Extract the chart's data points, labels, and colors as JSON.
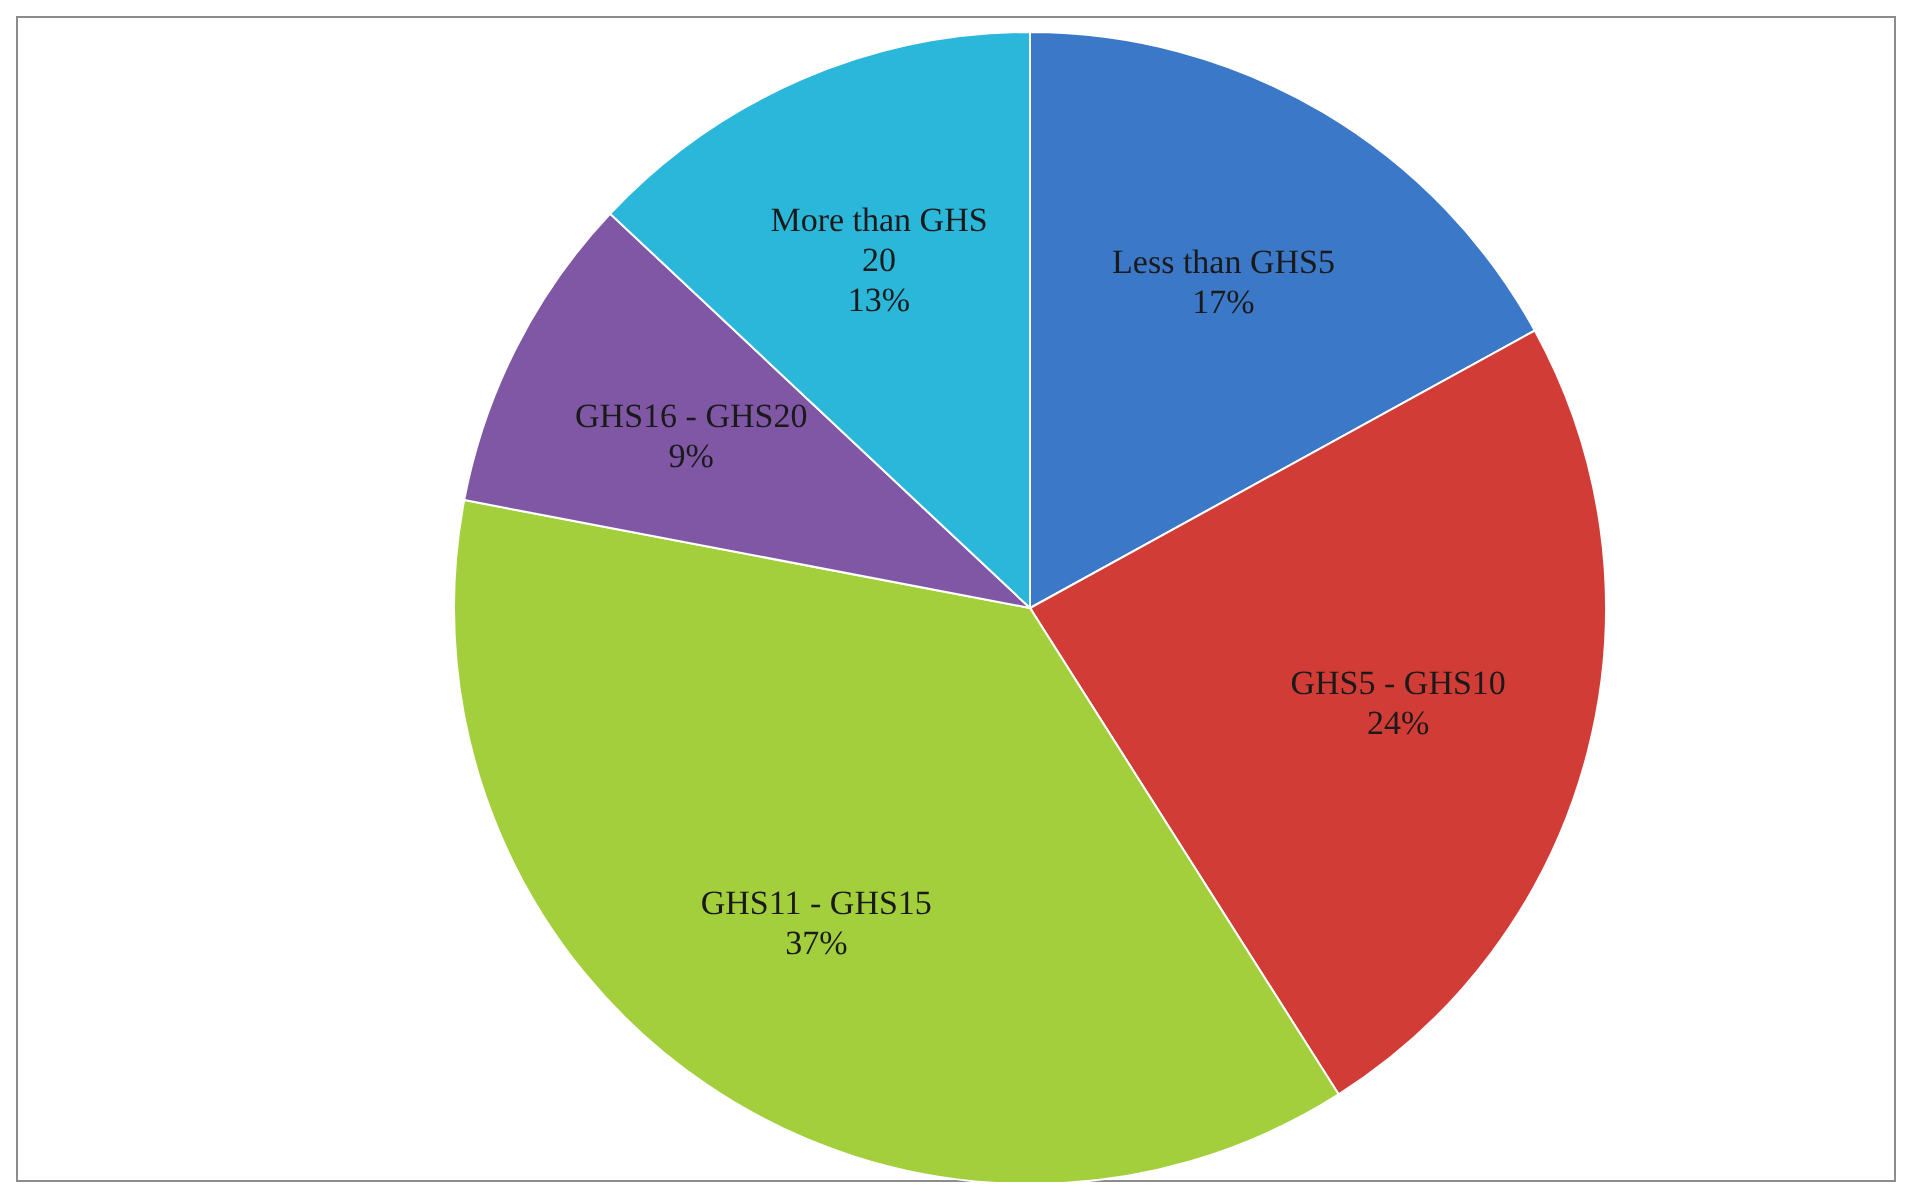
{
  "chart_data": {
    "type": "pie",
    "categories": [
      "Less than GHS5",
      "GHS5 - GHS10",
      "GHS11 - GHS15",
      "GHS16 - GHS20",
      "More than GHS 20"
    ],
    "values": [
      17,
      24,
      37,
      9,
      13
    ],
    "value_labels": [
      "17%",
      "24%",
      "37%",
      "9%",
      "13%"
    ],
    "colors": [
      "#3b78c8",
      "#d23c37",
      "#a3cf3d",
      "#7f57a5",
      "#2bb7da"
    ]
  }
}
